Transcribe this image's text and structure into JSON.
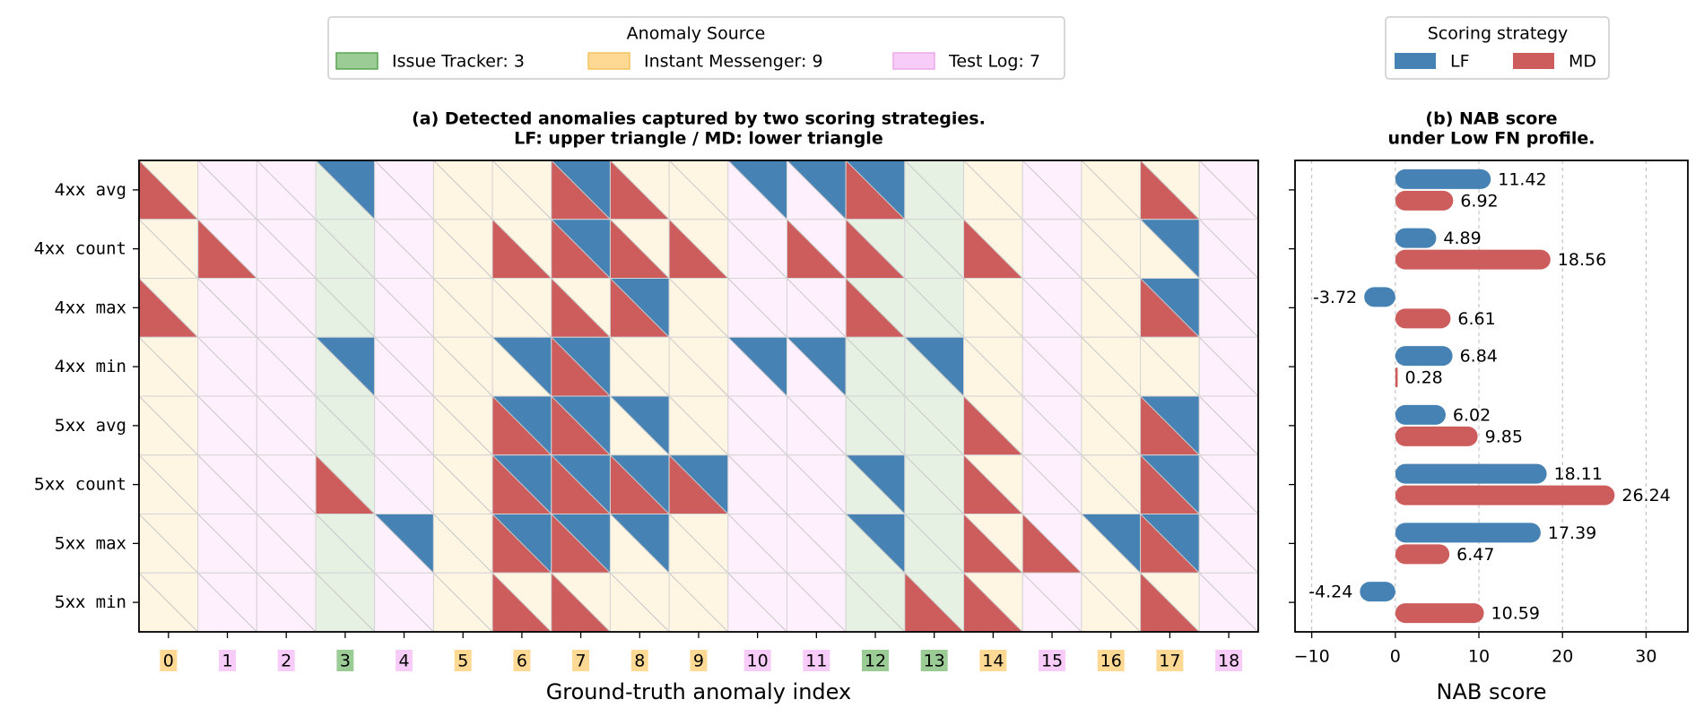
{
  "legend_source": {
    "title": "Anomaly Source",
    "entries": [
      {
        "key": "issue",
        "label": "Issue Tracker: 3",
        "fill": "#9ccc96",
        "edge": "#5aa552"
      },
      {
        "key": "im",
        "label": "Instant Messenger: 9",
        "fill": "#fed994",
        "edge": "#f2c35e"
      },
      {
        "key": "test",
        "label": "Test Log: 7",
        "fill": "#f8ccf8",
        "edge": "#ecaaec"
      }
    ]
  },
  "legend_strategy": {
    "title": "Scoring strategy",
    "entries": [
      {
        "label": "LF",
        "color": "#4682b4"
      },
      {
        "label": "MD",
        "color": "#cd5c5c"
      }
    ]
  },
  "chart_data": [
    {
      "type": "heatmap",
      "title": "(a) Detected anomalies captured by two scoring strategies.",
      "subtitle": "LF: upper triangle / MD: lower triangle",
      "xlabel": "Ground-truth anomaly index",
      "metric_prefixes": [
        "4xx",
        "4xx",
        "4xx",
        "4xx",
        "5xx",
        "5xx",
        "5xx",
        "5xx"
      ],
      "metric_suffixes": [
        "avg",
        "count",
        "max",
        "min",
        "avg",
        "count",
        "max",
        "min"
      ],
      "columns": [
        "0",
        "1",
        "2",
        "3",
        "4",
        "5",
        "6",
        "7",
        "8",
        "9",
        "10",
        "11",
        "12",
        "13",
        "14",
        "15",
        "16",
        "17",
        "18"
      ],
      "column_sources": [
        "im",
        "test",
        "test",
        "issue",
        "test",
        "im",
        "im",
        "im",
        "im",
        "im",
        "test",
        "test",
        "issue",
        "issue",
        "im",
        "test",
        "im",
        "im",
        "test"
      ],
      "source_tints": {
        "issue": "#e6f0e3",
        "im": "#fff5e3",
        "test": "#fff0fd"
      },
      "colors": {
        "LF": "#4682b4",
        "MD": "#cd5c5c"
      },
      "LF": [
        [
          0,
          0,
          0,
          1,
          0,
          0,
          0,
          1,
          0,
          0,
          1,
          1,
          1,
          0,
          0,
          0,
          0,
          0,
          0
        ],
        [
          0,
          0,
          0,
          0,
          0,
          0,
          0,
          1,
          0,
          0,
          0,
          0,
          0,
          0,
          0,
          0,
          0,
          1,
          0
        ],
        [
          0,
          0,
          0,
          0,
          0,
          0,
          0,
          0,
          1,
          0,
          0,
          0,
          0,
          0,
          0,
          0,
          0,
          1,
          0
        ],
        [
          0,
          0,
          0,
          1,
          0,
          0,
          1,
          1,
          0,
          0,
          1,
          1,
          0,
          1,
          0,
          0,
          0,
          0,
          0
        ],
        [
          0,
          0,
          0,
          0,
          0,
          0,
          1,
          1,
          1,
          0,
          0,
          0,
          0,
          0,
          0,
          0,
          0,
          1,
          0
        ],
        [
          0,
          0,
          0,
          0,
          0,
          0,
          1,
          1,
          1,
          1,
          0,
          0,
          1,
          0,
          0,
          0,
          0,
          1,
          0
        ],
        [
          0,
          0,
          0,
          0,
          1,
          0,
          1,
          1,
          1,
          0,
          0,
          0,
          1,
          0,
          0,
          0,
          1,
          1,
          0
        ],
        [
          0,
          0,
          0,
          0,
          0,
          0,
          0,
          0,
          0,
          0,
          0,
          0,
          0,
          0,
          0,
          0,
          0,
          0,
          0
        ]
      ],
      "MD": [
        [
          1,
          0,
          0,
          0,
          0,
          0,
          0,
          1,
          1,
          0,
          0,
          0,
          1,
          0,
          0,
          0,
          0,
          1,
          0
        ],
        [
          0,
          1,
          0,
          0,
          0,
          0,
          1,
          1,
          1,
          1,
          0,
          1,
          1,
          0,
          1,
          0,
          0,
          0,
          0
        ],
        [
          1,
          0,
          0,
          0,
          0,
          0,
          0,
          1,
          1,
          0,
          0,
          0,
          1,
          0,
          0,
          0,
          0,
          1,
          0
        ],
        [
          0,
          0,
          0,
          0,
          0,
          0,
          0,
          1,
          0,
          0,
          0,
          0,
          0,
          0,
          0,
          0,
          0,
          0,
          0
        ],
        [
          0,
          0,
          0,
          0,
          0,
          0,
          1,
          1,
          0,
          0,
          0,
          0,
          0,
          0,
          1,
          0,
          0,
          1,
          0
        ],
        [
          0,
          0,
          0,
          1,
          0,
          0,
          1,
          1,
          1,
          1,
          0,
          0,
          0,
          0,
          1,
          0,
          0,
          1,
          0
        ],
        [
          0,
          0,
          0,
          0,
          0,
          0,
          1,
          1,
          0,
          0,
          0,
          0,
          0,
          0,
          1,
          1,
          0,
          1,
          0
        ],
        [
          0,
          0,
          0,
          0,
          0,
          0,
          1,
          1,
          0,
          0,
          0,
          0,
          0,
          1,
          1,
          0,
          0,
          1,
          0
        ]
      ]
    },
    {
      "type": "bar",
      "orientation": "horizontal",
      "title": "(b) NAB score",
      "subtitle": "under Low FN profile.",
      "xlabel": "NAB score",
      "xlim": [
        -12,
        35
      ],
      "xticks": [
        -10,
        0,
        10,
        20,
        30
      ],
      "grid": true,
      "series": [
        {
          "name": "LF",
          "color": "#4682b4",
          "values": [
            11.42,
            4.89,
            -3.72,
            6.84,
            6.02,
            18.11,
            17.39,
            -4.24
          ]
        },
        {
          "name": "MD",
          "color": "#cd5c5c",
          "values": [
            6.92,
            18.56,
            6.61,
            0.28,
            9.85,
            26.24,
            6.47,
            10.59
          ]
        }
      ],
      "value_labels": {
        "LF": [
          "11.42",
          "4.89",
          "-3.72",
          "6.84",
          "6.02",
          "18.11",
          "17.39",
          "-4.24"
        ],
        "MD": [
          "6.92",
          "18.56",
          "6.61",
          "0.28",
          "9.85",
          "26.24",
          "6.47",
          "10.59"
        ]
      }
    }
  ]
}
